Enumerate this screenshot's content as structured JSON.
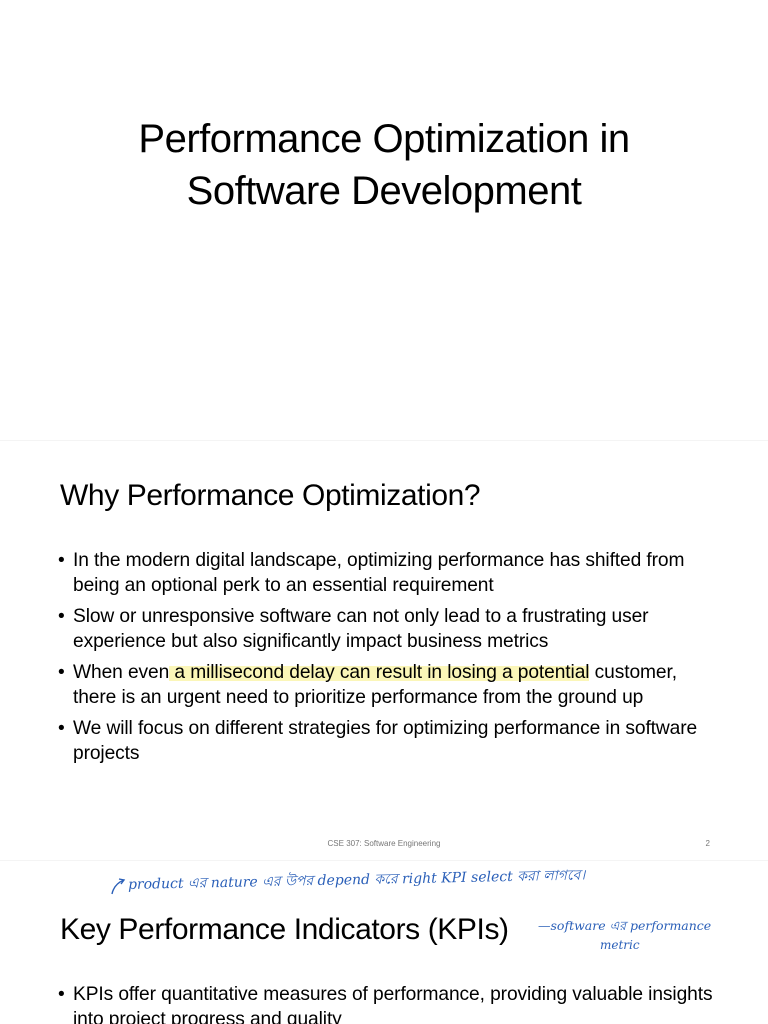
{
  "slide1": {
    "title_line1": "Performance Optimization in",
    "title_line2": "Software Development"
  },
  "slide2": {
    "heading": "Why Performance Optimization?",
    "bullets": [
      "In the modern digital landscape, optimizing performance has shifted from being an optional perk to an essential requirement",
      "Slow or unresponsive software can not only lead to a frustrating user experience but also significantly impact business metrics",
      "customer, there is an urgent need to prioritize performance from the ground up",
      "We will focus on different strategies for optimizing performance in software projects"
    ],
    "bullet3_prefix": "When even",
    "bullet3_highlight": " a millisecond delay can result in losing a potential",
    "bullet_char": "•",
    "footer": "CSE 307: Software Engineering",
    "page_number": "2",
    "highlight_color": "#fbf6b8"
  },
  "slide3": {
    "heading": "Key Performance Indicators (KPIs)",
    "bullets": [
      "KPIs offer quantitative measures of performance, providing valuable insights into project progress and quality"
    ],
    "handwritten_note_top": "product এর nature এর উপর depend করে right KPI select করা লাগবে।",
    "handwritten_note_side_line1": "—software এর performance",
    "handwritten_note_side_line2": "metric",
    "ink_color": "#2a5fb8"
  }
}
